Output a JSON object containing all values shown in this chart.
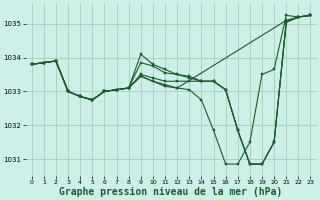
{
  "background_color": "#ceeee8",
  "grid_color": "#aaccbb",
  "line_color": "#1a5c2a",
  "marker_color": "#1a5c2a",
  "xlabel": "Graphe pression niveau de la mer (hPa)",
  "xlabel_fontsize": 7,
  "ylim": [
    1030.5,
    1035.6
  ],
  "xlim": [
    -0.5,
    23.5
  ],
  "yticks": [
    1031,
    1032,
    1033,
    1034,
    1035
  ],
  "xticks": [
    0,
    1,
    2,
    3,
    4,
    5,
    6,
    7,
    8,
    9,
    10,
    11,
    12,
    13,
    14,
    15,
    16,
    17,
    18,
    19,
    20,
    21,
    22,
    23
  ],
  "series": [
    {
      "x": [
        0,
        1,
        2,
        3,
        4,
        5,
        6,
        7,
        8,
        9,
        10,
        11,
        12,
        21,
        22,
        23
      ],
      "y": [
        1033.8,
        1033.85,
        1033.9,
        1033.0,
        1032.85,
        1032.75,
        1033.0,
        1033.05,
        1033.1,
        1033.45,
        1033.3,
        1033.2,
        1033.1,
        1035.1,
        1035.2,
        1035.25
      ]
    },
    {
      "x": [
        0,
        1,
        2,
        3,
        4,
        5,
        6,
        7,
        8,
        9,
        10,
        11,
        12,
        13,
        14,
        15,
        16,
        17,
        18,
        19,
        20,
        21,
        22,
        23
      ],
      "y": [
        1033.8,
        1033.85,
        1033.9,
        1033.0,
        1032.85,
        1032.75,
        1033.0,
        1033.05,
        1033.1,
        1034.1,
        1033.8,
        1033.65,
        1033.5,
        1033.4,
        1033.3,
        1033.3,
        1033.05,
        1031.85,
        1030.85,
        1030.85,
        1031.5,
        1035.05,
        1035.2,
        1035.25
      ]
    },
    {
      "x": [
        0,
        1,
        2,
        3,
        4,
        5,
        6,
        7,
        8,
        9,
        10,
        11,
        12,
        13,
        14,
        15,
        16,
        17,
        18,
        19,
        20,
        21,
        22,
        23
      ],
      "y": [
        1033.8,
        1033.85,
        1033.9,
        1033.0,
        1032.85,
        1032.75,
        1033.0,
        1033.05,
        1033.1,
        1033.85,
        1033.75,
        1033.55,
        1033.5,
        1033.45,
        1033.3,
        1033.3,
        1033.05,
        1031.85,
        1030.85,
        1030.85,
        1031.5,
        1035.05,
        1035.2,
        1035.25
      ]
    },
    {
      "x": [
        0,
        1,
        2,
        3,
        4,
        5,
        6,
        7,
        8,
        9,
        10,
        11,
        12,
        13,
        14,
        15,
        16,
        17,
        18,
        19,
        20,
        21,
        22,
        23
      ],
      "y": [
        1033.8,
        1033.85,
        1033.9,
        1033.0,
        1032.85,
        1032.75,
        1033.0,
        1033.05,
        1033.1,
        1033.5,
        1033.4,
        1033.3,
        1033.3,
        1033.3,
        1033.3,
        1033.3,
        1033.05,
        1031.85,
        1030.85,
        1030.85,
        1031.5,
        1035.05,
        1035.2,
        1035.25
      ]
    },
    {
      "x": [
        0,
        1,
        2,
        3,
        4,
        5,
        6,
        7,
        8,
        9,
        10,
        11,
        12,
        13,
        14,
        15,
        16,
        17,
        18,
        19,
        20,
        21,
        22,
        23
      ],
      "y": [
        1033.8,
        1033.85,
        1033.9,
        1033.0,
        1032.85,
        1032.75,
        1033.0,
        1033.05,
        1033.1,
        1033.45,
        1033.3,
        1033.15,
        1033.1,
        1033.05,
        1032.75,
        1031.85,
        1030.85,
        1030.85,
        1031.5,
        1033.5,
        1033.65,
        1035.25,
        1035.2,
        1035.25
      ]
    }
  ]
}
